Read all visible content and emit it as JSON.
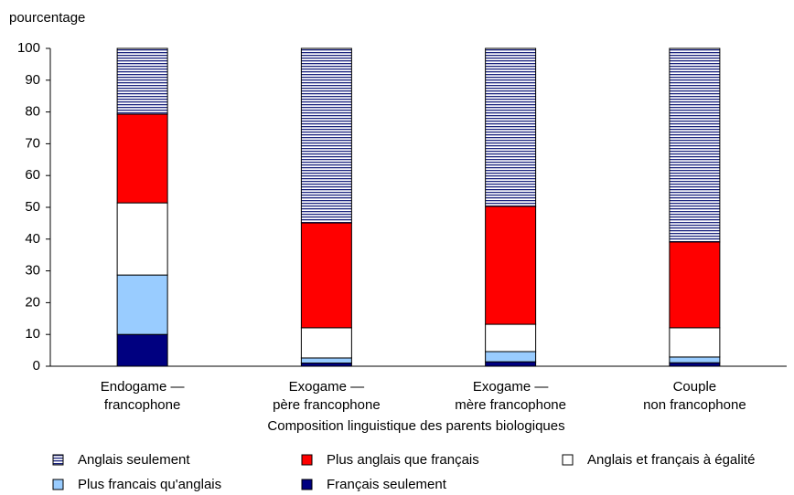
{
  "chart_data": {
    "type": "stacked_bar",
    "y_axis_label": "pourcentage",
    "x_axis_label": "Composition linguistique des parents biologiques",
    "categories": [
      [
        "Endogame —",
        "francophone"
      ],
      [
        "Exogame —",
        "père francophone"
      ],
      [
        "Exogame —",
        "mère francophone"
      ],
      [
        "Couple",
        "non francophone"
      ]
    ],
    "series": [
      {
        "name": "Anglais seulement",
        "color": "#1a237e",
        "pattern": "horizontal-stripes",
        "values": [
          20.7,
          54.9,
          49.7,
          60.9
        ]
      },
      {
        "name": "Plus anglais que français",
        "color": "#ff0000",
        "values": [
          27.9,
          33.0,
          37.1,
          27.0
        ]
      },
      {
        "name": "Anglais et français à égalité",
        "color": "#ffffff",
        "values": [
          22.7,
          9.5,
          8.6,
          9.2
        ]
      },
      {
        "name": "Plus francais qu'anglais",
        "color": "#99ccff",
        "values": [
          18.7,
          1.6,
          3.2,
          1.8
        ]
      },
      {
        "name": "Français seulement",
        "color": "#000080",
        "values": [
          10.0,
          1.0,
          1.4,
          1.1
        ]
      }
    ],
    "ylim": [
      0,
      100
    ],
    "yticks": [
      0,
      10,
      20,
      30,
      40,
      50,
      60,
      70,
      80,
      90,
      100
    ]
  }
}
